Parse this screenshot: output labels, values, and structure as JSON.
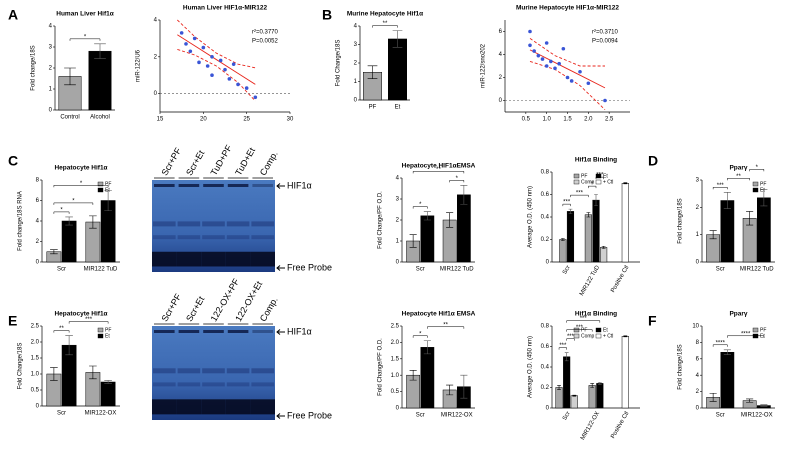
{
  "chart_data": [
    {
      "type": "bar",
      "panel": "A",
      "title": "Human Liver Hif1α",
      "ylabel": "Fold change/18S",
      "categories": [
        "Control",
        "Alcohol"
      ],
      "series": [
        {
          "colors": [
            "#a6a6a6",
            "#000000"
          ],
          "values": [
            1.6,
            2.8
          ],
          "errors": [
            0.4,
            0.35
          ]
        }
      ],
      "ylim": [
        0,
        4
      ],
      "yticks": [
        0,
        1,
        2,
        3,
        4
      ],
      "legend": false,
      "significance": [
        {
          "label": "*",
          "from": [
            0,
            0
          ],
          "to": [
            1,
            0
          ]
        }
      ]
    },
    {
      "type": "scatter",
      "title": "Human Liver HIF1α-MIR122",
      "ylabel": "miR-122/U6",
      "x": [
        17.5,
        18,
        18.5,
        19,
        19.5,
        20,
        20.5,
        21,
        21,
        22,
        22.5,
        23,
        23.5,
        24,
        25,
        26
      ],
      "values": [
        3.3,
        2.7,
        2.3,
        3.0,
        1.7,
        2.5,
        1.5,
        2.0,
        1.0,
        1.8,
        1.3,
        0.8,
        1.6,
        0.5,
        0.3,
        -0.2
      ],
      "color": "#3a55d6",
      "fit": {
        "x": [
          17,
          19,
          21.5,
          24,
          26
        ],
        "y": [
          3.2,
          2.6,
          1.85,
          1.1,
          0.5
        ],
        "lower": [
          2.4,
          2.1,
          1.5,
          0.6,
          -0.4
        ],
        "upper": [
          4.0,
          3.1,
          2.2,
          1.6,
          1.4
        ],
        "color": "#e8261c"
      },
      "annotations": [
        "r²=0.3770",
        "P=0.0052"
      ],
      "xlim": [
        15,
        30
      ],
      "xticks": [
        15,
        20,
        25,
        30
      ],
      "ylim": [
        -1,
        4
      ],
      "yticks": [
        0,
        2,
        4
      ],
      "zero_line": true
    },
    {
      "type": "bar",
      "panel": "B",
      "title": "Murine Hepatocyte Hif1α",
      "ylabel": "Fold Change/18S",
      "categories": [
        "PF",
        "Et"
      ],
      "series": [
        {
          "colors": [
            "#a6a6a6",
            "#000000"
          ],
          "values": [
            1.5,
            3.3
          ],
          "errors": [
            0.35,
            0.45
          ]
        }
      ],
      "ylim": [
        0,
        4
      ],
      "yticks": [
        0,
        1,
        2,
        3,
        4
      ],
      "legend": false,
      "significance": [
        {
          "label": "**",
          "from": [
            0,
            0
          ],
          "to": [
            1,
            0
          ]
        }
      ]
    },
    {
      "type": "scatter",
      "title": "Murine Hepatocyte HIF1α-MIR122",
      "ylabel": "miR-122/sno202",
      "x": [
        0.6,
        0.6,
        0.7,
        0.8,
        0.9,
        1.0,
        1.0,
        1.1,
        1.2,
        1.3,
        1.4,
        1.5,
        1.6,
        1.8,
        2.0,
        2.4
      ],
      "values": [
        6.0,
        4.8,
        4.3,
        3.9,
        3.6,
        5.0,
        3.0,
        3.4,
        2.8,
        3.2,
        4.5,
        2.0,
        1.7,
        2.5,
        1.5,
        0.0
      ],
      "color": "#3a55d6",
      "fit": {
        "x": [
          0.6,
          1.2,
          1.8,
          2.4
        ],
        "y": [
          4.4,
          3.3,
          2.2,
          1.1
        ],
        "lower": [
          3.4,
          2.7,
          1.3,
          -0.8
        ],
        "upper": [
          5.4,
          3.9,
          3.0,
          3.0
        ],
        "color": "#e8261c"
      },
      "annotations": [
        "r²=0.3710",
        "P=0.0094"
      ],
      "xlim": [
        0,
        3
      ],
      "xticks": [
        0.5,
        {
          "value": 1,
          "label": "1.0"
        },
        1.5,
        {
          "value": 2,
          "label": "2.0"
        },
        2.5
      ],
      "ylim": [
        -1,
        7
      ],
      "yticks": [
        0,
        2,
        4,
        6
      ],
      "zero_line": true
    },
    {
      "type": "bar",
      "panel": "C",
      "title": "Hepatocyte Hif1α",
      "ylabel": "Fold change/18S RNA",
      "categories": [
        "Scr",
        "MIR122 TuD"
      ],
      "series": [
        {
          "name": "PF",
          "color": "#a6a6a6",
          "values": [
            1.0,
            3.9
          ],
          "errors": [
            0.2,
            0.6
          ]
        },
        {
          "name": "Et",
          "color": "#000000",
          "values": [
            4.0,
            6.0
          ],
          "errors": [
            0.4,
            1.0
          ]
        }
      ],
      "ylim": [
        0,
        8
      ],
      "yticks": [
        0,
        2,
        4,
        6,
        8
      ],
      "legend": true,
      "significance": [
        {
          "label": "*",
          "from": [
            0,
            0
          ],
          "to": [
            0,
            1
          ]
        },
        {
          "label": "*",
          "from": [
            0,
            0
          ],
          "to": [
            1,
            0
          ]
        },
        {
          "label": "*",
          "from": [
            0,
            0
          ],
          "to": [
            1,
            1
          ]
        }
      ]
    },
    {
      "type": "bar",
      "title": "Hepatocyte HIF1αEMSA",
      "ylabel": "Fold Change/PF O.D.",
      "categories": [
        "Scr",
        "MIR122 TuD"
      ],
      "series": [
        {
          "name": "PF",
          "color": "#a6a6a6",
          "values": [
            1.0,
            2.0
          ],
          "errors": [
            0.3,
            0.35
          ]
        },
        {
          "name": "Et",
          "color": "#000000",
          "values": [
            2.2,
            3.2
          ],
          "errors": [
            0.2,
            0.45
          ]
        }
      ],
      "ylim": [
        0,
        4
      ],
      "yticks": [
        0,
        1,
        2,
        3,
        4
      ],
      "legend": false,
      "significance": [
        {
          "label": "*",
          "from": [
            0,
            0
          ],
          "to": [
            0,
            1
          ]
        },
        {
          "label": "*",
          "from": [
            1,
            0
          ],
          "to": [
            1,
            1
          ]
        },
        {
          "label": "**",
          "from": [
            0,
            0
          ],
          "to": [
            1,
            1
          ]
        }
      ]
    },
    {
      "type": "bar",
      "title": "Hif1α Binding",
      "ylabel": "Average O.D. (450 nm)",
      "categories": [
        "Scr",
        "MIR122 TuD",
        "Positive Ctl"
      ],
      "rotate_labels": true,
      "series": [
        {
          "name": "PF",
          "color": "#a6a6a6",
          "values": [
            0.2,
            0.42,
            null
          ],
          "errors": [
            0.01,
            0.02,
            null
          ]
        },
        {
          "name": "Et",
          "color": "#000000",
          "values": [
            0.45,
            0.55,
            null
          ],
          "errors": [
            0.02,
            0.05,
            null
          ]
        },
        {
          "name": "Comp",
          "color": "#d0d0d0",
          "values": [
            null,
            0.13,
            null
          ],
          "errors": [
            null,
            0.01,
            null
          ]
        },
        {
          "name": "+ Ctl",
          "color": "#ffffff",
          "values": [
            null,
            null,
            0.7
          ],
          "errors": [
            null,
            null,
            0.005
          ]
        }
      ],
      "ylim": [
        0,
        0.8
      ],
      "yticks": [
        0,
        0.2,
        0.4,
        0.6,
        0.8
      ],
      "legend": true,
      "significance": [
        {
          "label": "***",
          "from": [
            0,
            0
          ],
          "to": [
            0,
            1
          ]
        },
        {
          "label": "***",
          "from": [
            0,
            1
          ],
          "to": [
            1,
            0
          ]
        },
        {
          "label": "*",
          "from": [
            1,
            0
          ],
          "to": [
            1,
            1
          ]
        },
        {
          "label": "***",
          "from": [
            1,
            1
          ],
          "to": [
            1,
            2
          ]
        }
      ]
    },
    {
      "type": "bar",
      "panel": "D",
      "title": "Pparγ",
      "ylabel": "Fold change/18S",
      "categories": [
        "Scr",
        "MIR122 TuD"
      ],
      "series": [
        {
          "name": "PF",
          "color": "#a6a6a6",
          "values": [
            1.0,
            1.6
          ],
          "errors": [
            0.15,
            0.25
          ]
        },
        {
          "name": "Et",
          "color": "#000000",
          "values": [
            2.25,
            2.35
          ],
          "errors": [
            0.3,
            0.3
          ]
        }
      ],
      "ylim": [
        0,
        3
      ],
      "yticks": [
        0,
        1,
        2,
        3
      ],
      "legend": true,
      "significance": [
        {
          "label": "***",
          "from": [
            0,
            0
          ],
          "to": [
            0,
            1
          ]
        },
        {
          "label": "**",
          "from": [
            0,
            1
          ],
          "to": [
            1,
            0
          ]
        },
        {
          "label": "*",
          "from": [
            1,
            0
          ],
          "to": [
            1,
            1
          ]
        }
      ]
    },
    {
      "type": "bar",
      "panel": "E",
      "title": "Hepatocyte Hif1α",
      "ylabel": "Fold Change/18S",
      "categories": [
        "Scr",
        "MIR122-OX"
      ],
      "series": [
        {
          "name": "PF",
          "color": "#a6a6a6",
          "values": [
            1.0,
            1.05
          ],
          "errors": [
            0.2,
            0.2
          ]
        },
        {
          "name": "Et",
          "color": "#000000",
          "values": [
            1.9,
            0.75
          ],
          "errors": [
            0.3,
            0.05
          ]
        }
      ],
      "ylim": [
        0,
        2.5
      ],
      "yticks": [
        0,
        0.5,
        {
          "value": 1,
          "label": "1.0"
        },
        1.5,
        {
          "value": 2,
          "label": "2.0"
        },
        2.5
      ],
      "legend": true,
      "significance": [
        {
          "label": "**",
          "from": [
            0,
            0
          ],
          "to": [
            0,
            1
          ]
        },
        {
          "label": "***",
          "from": [
            0,
            1
          ],
          "to": [
            1,
            1
          ]
        }
      ]
    },
    {
      "type": "bar",
      "title": "Hepatocyte Hif1α EMSA",
      "ylabel": "Fold Change/PF O.D.",
      "categories": [
        "Scr",
        "MIR122-OX"
      ],
      "series": [
        {
          "name": "PF",
          "color": "#a6a6a6",
          "values": [
            1.0,
            0.55
          ],
          "errors": [
            0.15,
            0.15
          ]
        },
        {
          "name": "Et",
          "color": "#000000",
          "values": [
            1.85,
            0.65
          ],
          "errors": [
            0.2,
            0.35
          ]
        }
      ],
      "ylim": [
        0,
        2.5
      ],
      "yticks": [
        0,
        0.5,
        {
          "value": 1,
          "label": "1.0"
        },
        1.5,
        {
          "value": 2,
          "label": "2.0"
        },
        2.5
      ],
      "legend": false,
      "significance": [
        {
          "label": "*",
          "from": [
            0,
            0
          ],
          "to": [
            0,
            1
          ]
        },
        {
          "label": "**",
          "from": [
            0,
            1
          ],
          "to": [
            1,
            1
          ]
        }
      ]
    },
    {
      "type": "bar",
      "title": "Hif1α Binding",
      "ylabel": "Average O.D. (450 nm)",
      "categories": [
        "Scr",
        "MIR122-OX",
        "Positive Ctl"
      ],
      "rotate_labels": true,
      "series": [
        {
          "name": "PF",
          "color": "#a6a6a6",
          "values": [
            0.2,
            0.22,
            null
          ],
          "errors": [
            0.02,
            0.02,
            null
          ]
        },
        {
          "name": "Et",
          "color": "#000000",
          "values": [
            0.5,
            0.24,
            null
          ],
          "errors": [
            0.04,
            0.01,
            null
          ]
        },
        {
          "name": "Comp",
          "color": "#d0d0d0",
          "values": [
            0.12,
            null,
            null
          ],
          "errors": [
            0.005,
            null,
            null
          ]
        },
        {
          "name": "+ Ctl",
          "color": "#ffffff",
          "values": [
            null,
            null,
            0.7
          ],
          "errors": [
            null,
            null,
            0.005
          ]
        }
      ],
      "ylim": [
        0,
        0.8
      ],
      "yticks": [
        0,
        0.2,
        0.4,
        0.6,
        0.8
      ],
      "legend": true,
      "significance": [
        {
          "label": "***",
          "from": [
            0,
            0
          ],
          "to": [
            0,
            1
          ]
        },
        {
          "label": "***",
          "from": [
            0,
            1
          ],
          "to": [
            0,
            2
          ]
        },
        {
          "label": "***",
          "from": [
            0,
            1
          ],
          "to": [
            1,
            0
          ]
        },
        {
          "label": "***",
          "from": [
            0,
            1
          ],
          "to": [
            1,
            1
          ]
        }
      ]
    },
    {
      "type": "bar",
      "panel": "F",
      "title": "Pparγ",
      "ylabel": "Fold change/18S",
      "categories": [
        "Scr",
        "MIR122-OX"
      ],
      "series": [
        {
          "name": "PF",
          "color": "#a6a6a6",
          "values": [
            1.3,
            0.9
          ],
          "errors": [
            0.5,
            0.2
          ]
        },
        {
          "name": "Et",
          "color": "#000000",
          "values": [
            6.8,
            0.3
          ],
          "errors": [
            0.3,
            0.1
          ]
        }
      ],
      "ylim": [
        0,
        10
      ],
      "yticks": [
        0,
        2,
        4,
        6,
        8,
        10
      ],
      "legend": true,
      "significance": [
        {
          "label": "****",
          "from": [
            0,
            0
          ],
          "to": [
            0,
            1
          ]
        },
        {
          "label": "****",
          "from": [
            0,
            1
          ],
          "to": [
            1,
            1
          ]
        }
      ]
    }
  ],
  "blots": [
    {
      "lanes": [
        "Scr+PF",
        "Scr+Et",
        "TuD+PF",
        "TuD+Et",
        "Comp."
      ],
      "band_label": "HIF1α",
      "probe_label": "Free Probe"
    },
    {
      "lanes": [
        "Scr+PF",
        "Scr+Et",
        "122-OX+PF",
        "122-OX+Et",
        "Comp."
      ],
      "band_label": "HIF1α",
      "probe_label": "Free Probe"
    }
  ]
}
